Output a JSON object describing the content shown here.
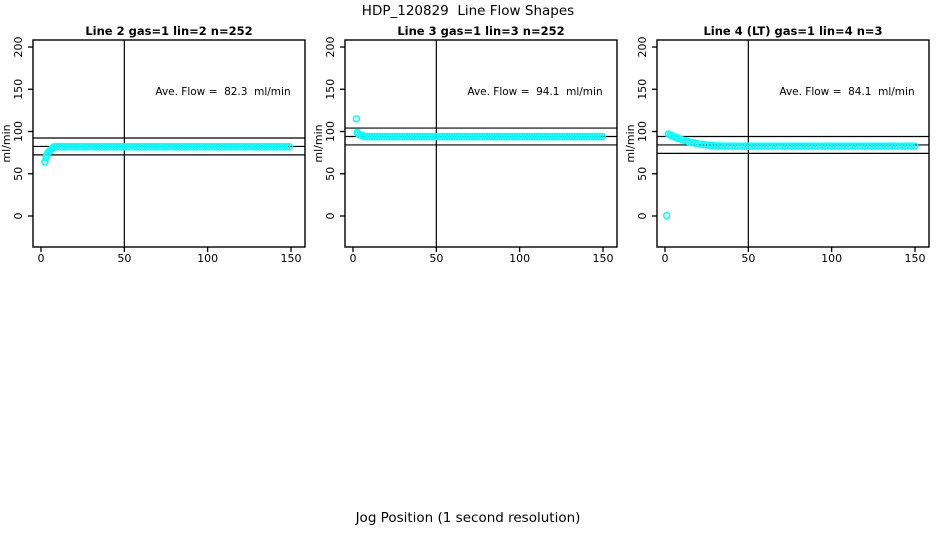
{
  "figure": {
    "title": "HDP_120829  Line Flow Shapes",
    "xlabel": "Jog Position (1 second resolution)"
  },
  "colors": {
    "data_points": "#00ffff",
    "axis": "#000000",
    "background": "#ffffff",
    "text": "#000000"
  },
  "chart_data": [
    {
      "type": "scatter",
      "title": "Line 2 gas=1 lin=2 n=252",
      "ylabel": "ml/min",
      "annotation": "Ave. Flow =  82.3  ml/min",
      "ave_flow_ml_min": 82.3,
      "x_ticks": [
        0,
        50,
        100,
        150
      ],
      "y_ticks": [
        0,
        50,
        100,
        150,
        200
      ],
      "xlim": [
        -4.8,
        158.4
      ],
      "ylim": [
        -36.7,
        208.3
      ],
      "grid": false,
      "vline_x": 50,
      "hlines": [
        92.3,
        82.3,
        72.3
      ],
      "points": [
        [
          2.4,
          64
        ],
        [
          3,
          69
        ],
        [
          3.5,
          72
        ],
        [
          4,
          74.5
        ],
        [
          5,
          77
        ],
        [
          6,
          79
        ],
        [
          7,
          80.5
        ]
      ],
      "plateau": {
        "x_from": 8,
        "x_to": 150,
        "step": 1.5,
        "y": 82
      }
    },
    {
      "type": "scatter",
      "title": "Line 3 gas=1 lin=3 n=252",
      "ylabel": "ml/min",
      "annotation": "Ave. Flow =  94.1  ml/min",
      "ave_flow_ml_min": 94.1,
      "x_ticks": [
        0,
        50,
        100,
        150
      ],
      "y_ticks": [
        0,
        50,
        100,
        150,
        200
      ],
      "xlim": [
        -4.8,
        158.4
      ],
      "ylim": [
        -36.7,
        208.3
      ],
      "grid": false,
      "vline_x": 50,
      "hlines": [
        104.1,
        94.1,
        84.1
      ],
      "points": [
        [
          2,
          115
        ],
        [
          2.5,
          99
        ],
        [
          3,
          97.5
        ],
        [
          4,
          96.3
        ],
        [
          5,
          95.4
        ],
        [
          6,
          94.8
        ]
      ],
      "plateau": {
        "x_from": 7,
        "x_to": 150,
        "step": 1.5,
        "y": 94
      }
    },
    {
      "type": "scatter",
      "title": "Line 4 (LT) gas=1 lin=4 n=3",
      "ylabel": "ml/min",
      "annotation": "Ave. Flow =  84.1  ml/min",
      "ave_flow_ml_min": 84.1,
      "x_ticks": [
        0,
        50,
        100,
        150
      ],
      "y_ticks": [
        0,
        50,
        100,
        150,
        200
      ],
      "xlim": [
        -4.8,
        158.4
      ],
      "ylim": [
        -36.7,
        208.3
      ],
      "grid": false,
      "vline_x": 50,
      "hlines": [
        94.1,
        84.1,
        74.1
      ],
      "points": [
        [
          1,
          0.5
        ],
        [
          2,
          97
        ],
        [
          3,
          96
        ],
        [
          4,
          95
        ],
        [
          5,
          94.2
        ],
        [
          6,
          93.4
        ],
        [
          7,
          92.6
        ],
        [
          8,
          91.8
        ],
        [
          10,
          90.4
        ],
        [
          12,
          89.2
        ],
        [
          14,
          88
        ],
        [
          16,
          87
        ],
        [
          18,
          86.2
        ],
        [
          20,
          85.4
        ],
        [
          22,
          84.8
        ],
        [
          24,
          84.3
        ],
        [
          26,
          83.9
        ],
        [
          28,
          83.5
        ],
        [
          30,
          83.2
        ],
        [
          32,
          83
        ],
        [
          34,
          82.9
        ]
      ],
      "plateau": {
        "x_from": 36,
        "x_to": 150,
        "step": 2,
        "y": 82.7
      }
    }
  ]
}
